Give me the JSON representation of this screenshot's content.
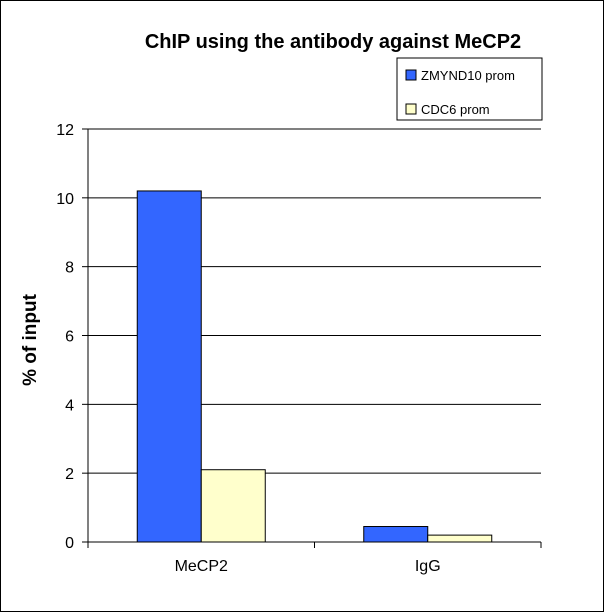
{
  "chart_data": {
    "type": "bar",
    "title": "ChIP using the antibody against MeCP2",
    "xlabel": "",
    "ylabel": "% of input",
    "categories": [
      "MeCP2",
      "IgG"
    ],
    "series": [
      {
        "name": "ZMYND10 prom",
        "color": "#3366ff",
        "values": [
          10.2,
          0.45
        ]
      },
      {
        "name": "CDC6 prom",
        "color": "#ffffcc",
        "values": [
          2.1,
          0.2
        ]
      }
    ],
    "ylim": [
      0,
      12
    ],
    "yticks": [
      "0",
      "2",
      "4",
      "6",
      "8",
      "10",
      "12"
    ],
    "grid": true,
    "legend": "top-right"
  }
}
